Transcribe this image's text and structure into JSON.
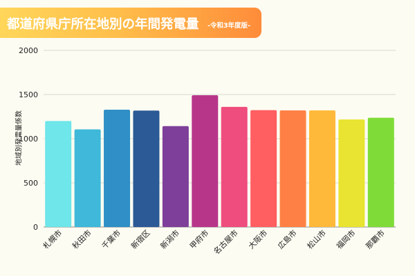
{
  "title": "都道府県庁所在地別の年間発電量",
  "subtitle": "-令和3年度版-",
  "chart_data": {
    "type": "bar",
    "ylabel": "地域別発電量係数",
    "xlabel": "",
    "ylim": [
      0,
      2000
    ],
    "yticks": [
      0,
      500,
      1000,
      1500,
      2000
    ],
    "grid": true,
    "categories": [
      "札幌市",
      "秋田市",
      "千葉市",
      "新宿区",
      "新潟市",
      "甲府市",
      "名古屋市",
      "大阪市",
      "広島市",
      "松山市",
      "福岡市",
      "那覇市"
    ],
    "values": [
      1200,
      1105,
      1328,
      1318,
      1143,
      1492,
      1360,
      1323,
      1320,
      1320,
      1218,
      1237
    ],
    "colors": [
      "#6ee6ea",
      "#3fb8d9",
      "#2f8fc6",
      "#2c5a96",
      "#7e3f9a",
      "#b8368a",
      "#ef4d7e",
      "#ff5f61",
      "#ff8045",
      "#ffb93a",
      "#e8e431",
      "#7fdc38"
    ]
  }
}
